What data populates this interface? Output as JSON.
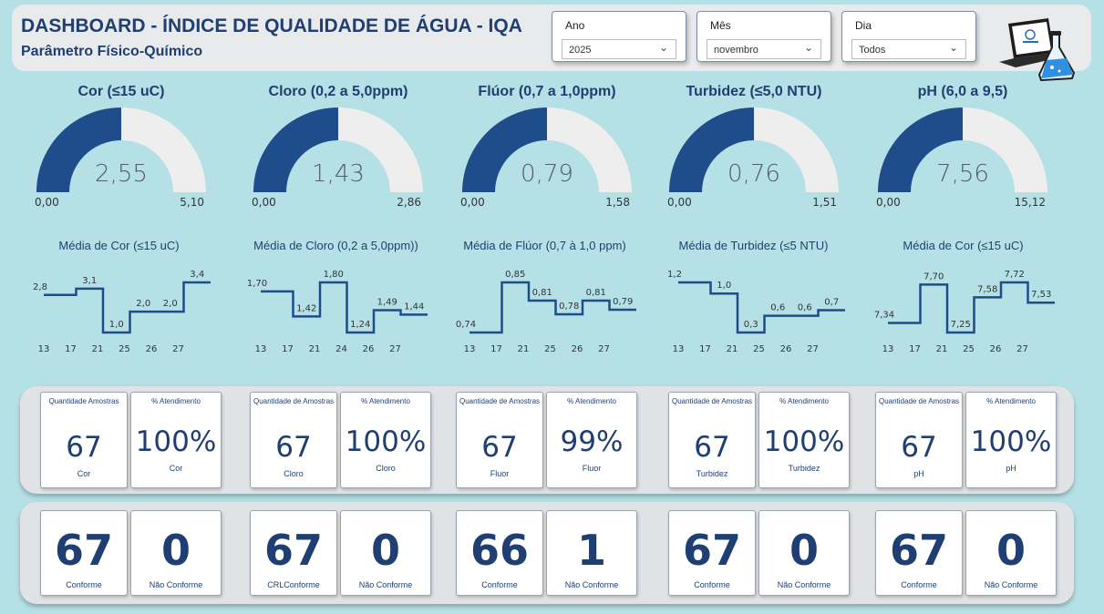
{
  "header": {
    "title": "DASHBOARD - ÍNDICE DE QUALIDADE DE ÁGUA - IQA",
    "subtitle": "Parâmetro Físico-Químico"
  },
  "filters": [
    {
      "label": "Ano",
      "value": "2025"
    },
    {
      "label": "Mês",
      "value": "novembro"
    },
    {
      "label": "Dia",
      "value": "Todos"
    }
  ],
  "colors": {
    "accent": "#1f4c8a",
    "gauge_track": "#eeeeee",
    "background": "#b5e0e6"
  },
  "gauges": [
    {
      "title": "Cor (≤15 uC)",
      "value": "2,55",
      "min": "0,00",
      "max": "5,10",
      "fraction": 0.5
    },
    {
      "title": "Cloro (0,2 a 5,0ppm)",
      "value": "1,43",
      "min": "0,00",
      "max": "2,86",
      "fraction": 0.5
    },
    {
      "title": "Flúor (0,7 a 1,0ppm)",
      "value": "0,79",
      "min": "0,00",
      "max": "1,58",
      "fraction": 0.5
    },
    {
      "title": "Turbidez (≤5,0 NTU)",
      "value": "0,76",
      "min": "0,00",
      "max": "1,51",
      "fraction": 0.5
    },
    {
      "title": "pH (6,0 a 9,5)",
      "value": "7,56",
      "min": "0,00",
      "max": "15,12",
      "fraction": 0.5
    }
  ],
  "chart_data": [
    {
      "type": "line",
      "title": "Média de Cor (≤15 uC)",
      "categories": [
        "13",
        "17",
        "21",
        "25",
        "26",
        "27"
      ],
      "values": [
        2.8,
        3.1,
        1.0,
        2.0,
        2.0,
        3.4
      ],
      "labels": [
        "2,8",
        "3,1",
        "1,0",
        "2,0",
        "2,0",
        "3,4"
      ]
    },
    {
      "type": "line",
      "title": "Média de Cloro (0,2 a 5,0ppm))",
      "categories": [
        "13",
        "17",
        "21",
        "24",
        "26",
        "27"
      ],
      "values": [
        1.7,
        1.42,
        1.8,
        1.24,
        1.49,
        1.44
      ],
      "labels": [
        "1,70",
        "1,42",
        "1,80",
        "1,24",
        "1,49",
        "1,44"
      ]
    },
    {
      "type": "line",
      "title": "Média de Flúor (0,7 à 1,0 ppm)",
      "categories": [
        "13",
        "17",
        "21",
        "25",
        "26",
        "27"
      ],
      "values": [
        0.74,
        0.85,
        0.81,
        0.78,
        0.81,
        0.79
      ],
      "labels": [
        "0,74",
        "0,85",
        "0,81",
        "0,78",
        "0,81",
        "0,79"
      ]
    },
    {
      "type": "line",
      "title": "Média de Turbidez (≤5 NTU)",
      "categories": [
        "13",
        "17",
        "21",
        "25",
        "26",
        "27"
      ],
      "values": [
        1.2,
        1.0,
        0.3,
        0.6,
        0.6,
        0.7
      ],
      "labels": [
        "1,2",
        "1,0",
        "0,3",
        "0,6",
        "0,6",
        "0,7"
      ]
    },
    {
      "type": "line",
      "title": "Média de Cor (≤15 uC)",
      "categories": [
        "13",
        "17",
        "21",
        "25",
        "26",
        "27"
      ],
      "values": [
        7.34,
        7.7,
        7.25,
        7.58,
        7.72,
        7.53
      ],
      "labels": [
        "7,34",
        "7,70",
        "7,25",
        "7,58",
        "7,72",
        "7,53"
      ]
    }
  ],
  "stat_cards": [
    {
      "qty_header": "Quantidade Amostras",
      "qty": "67",
      "qty_param": "Cor",
      "pct_header": "% Atendimento",
      "pct": "100%",
      "pct_param": "Cor"
    },
    {
      "qty_header": "Quantidade de Amostras",
      "qty": "67",
      "qty_param": "Cloro",
      "pct_header": "% Atendimento",
      "pct": "100%",
      "pct_param": "Cloro"
    },
    {
      "qty_header": "Quantidade de Amostras",
      "qty": "67",
      "qty_param": "Fluor",
      "pct_header": "% Atendimento",
      "pct": "99%",
      "pct_param": "Fluor"
    },
    {
      "qty_header": "Quantidade de Amostras",
      "qty": "67",
      "qty_param": "Turbidez",
      "pct_header": "% Atendimento",
      "pct": "100%",
      "pct_param": "Turbidez"
    },
    {
      "qty_header": "Quantidade de Amostras",
      "qty": "67",
      "qty_param": "pH",
      "pct_header": "% Atendimento",
      "pct": "100%",
      "pct_param": "pH"
    }
  ],
  "conformity_cards": [
    {
      "conf": "67",
      "conf_label": "Conforme",
      "nconf": "0",
      "nconf_label": "Não Conforme"
    },
    {
      "conf": "67",
      "conf_label": "CRLConforme",
      "nconf": "0",
      "nconf_label": "Não Conforme"
    },
    {
      "conf": "66",
      "conf_label": "Conforme",
      "nconf": "1",
      "nconf_label": "Não Conforme"
    },
    {
      "conf": "67",
      "conf_label": "Conforme",
      "nconf": "0",
      "nconf_label": "Não Conforme"
    },
    {
      "conf": "67",
      "conf_label": "Conforme",
      "nconf": "0",
      "nconf_label": "Não Conforme"
    }
  ]
}
